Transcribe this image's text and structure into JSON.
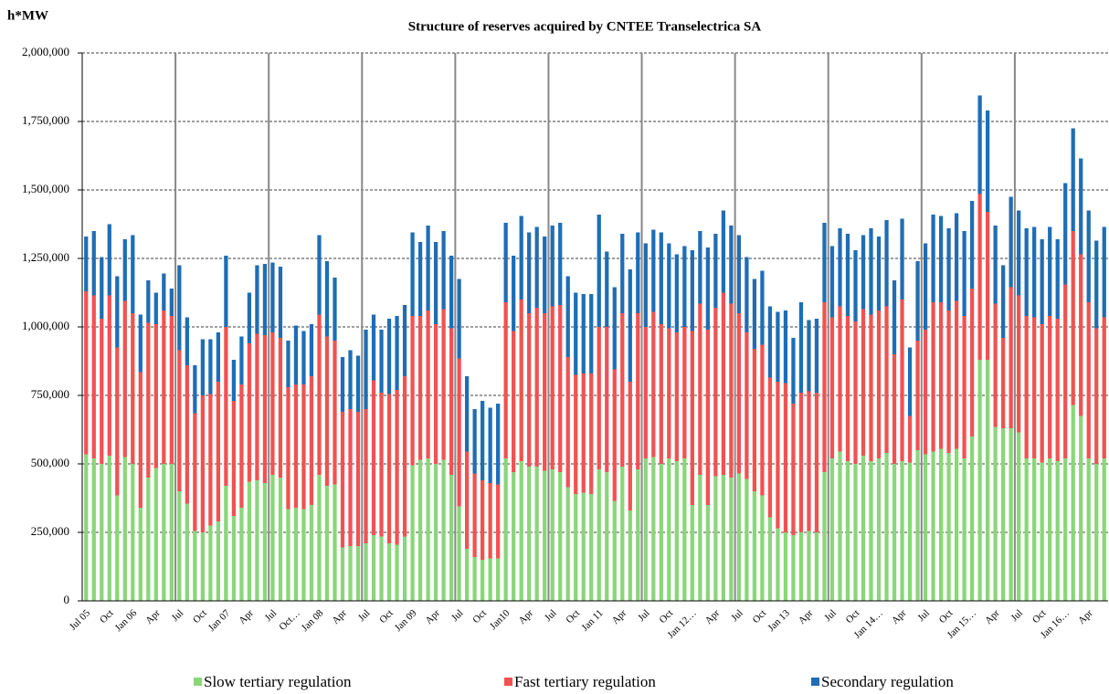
{
  "chart_data": {
    "type": "stacked_bar",
    "title": "Structure  of reserves acquired by CNTEE Transelectrica SA",
    "y_label": "h*MW",
    "categories": [
      "Jul 05",
      null,
      null,
      "Oct",
      null,
      null,
      "Jan 06",
      null,
      null,
      "Apr",
      null,
      null,
      "Jul",
      null,
      null,
      "Oct",
      null,
      null,
      "Jan 07",
      null,
      null,
      "Apr",
      null,
      null,
      "Jul",
      null,
      null,
      "Oct…",
      null,
      null,
      "Jan 08",
      null,
      null,
      "Apr",
      null,
      null,
      "Jul",
      null,
      null,
      "Oct",
      null,
      null,
      "Jan 09",
      null,
      null,
      "Apr",
      null,
      null,
      "Jul",
      null,
      null,
      "Oct",
      null,
      null,
      "Jan10",
      null,
      null,
      "Apr",
      null,
      null,
      "Jul",
      null,
      null,
      "Oct",
      null,
      null,
      "Jan 11",
      null,
      null,
      "Apr",
      null,
      null,
      "Jul",
      null,
      null,
      "Oct",
      null,
      null,
      "Jan 12…",
      null,
      null,
      "Apr",
      null,
      null,
      "Jul",
      null,
      null,
      "Oct",
      null,
      null,
      "Jan 13",
      null,
      null,
      "Apr",
      null,
      null,
      "Jul",
      null,
      null,
      "Oct",
      null,
      null,
      "Jan 14…",
      null,
      null,
      "Apr",
      null,
      null,
      "Jul",
      null,
      null,
      "Oct",
      null,
      null,
      "Jan 15…",
      null,
      null,
      "Apr",
      null,
      null,
      "Jul",
      null,
      null,
      "Oct",
      null,
      null,
      "Jan 16…",
      null,
      null,
      "Apr",
      null,
      null
    ],
    "series": [
      {
        "name": "Slow tertiary regulation",
        "color": "#8ad67a",
        "values": [
          535000,
          520000,
          500000,
          530000,
          385000,
          525000,
          500000,
          340000,
          450000,
          485000,
          500000,
          500000,
          400000,
          355000,
          255000,
          250000,
          275000,
          290000,
          420000,
          310000,
          340000,
          435000,
          440000,
          430000,
          460000,
          450000,
          335000,
          340000,
          335000,
          350000,
          460000,
          420000,
          425000,
          195000,
          200000,
          200000,
          210000,
          240000,
          235000,
          210000,
          205000,
          235000,
          495000,
          515000,
          520000,
          500000,
          515000,
          460000,
          345000,
          190000,
          160000,
          150000,
          155000,
          155000,
          520000,
          470000,
          510000,
          490000,
          490000,
          475000,
          480000,
          470000,
          415000,
          390000,
          395000,
          390000,
          480000,
          470000,
          365000,
          490000,
          330000,
          480000,
          520000,
          525000,
          500000,
          520000,
          510000,
          520000,
          350000,
          460000,
          350000,
          455000,
          460000,
          450000,
          465000,
          445000,
          400000,
          385000,
          305000,
          265000,
          250000,
          240000,
          250000,
          255000,
          250000,
          470000,
          520000,
          545000,
          510000,
          500000,
          530000,
          510000,
          520000,
          540000,
          500000,
          510000,
          505000,
          550000,
          535000,
          545000,
          555000,
          540000,
          555000,
          520000,
          600000,
          880000,
          880000,
          635000,
          630000,
          630000,
          615000,
          520000,
          520000,
          505000,
          520000,
          510000,
          520000,
          715000,
          675000,
          520000,
          500000,
          520000
        ]
      },
      {
        "name": "Fast tertiary regulation",
        "color": "#f05252",
        "values": [
          595000,
          595000,
          530000,
          585000,
          540000,
          570000,
          550000,
          495000,
          565000,
          525000,
          560000,
          540000,
          515000,
          505000,
          430000,
          500000,
          480000,
          510000,
          580000,
          420000,
          450000,
          505000,
          535000,
          540000,
          520000,
          510000,
          445000,
          450000,
          455000,
          470000,
          585000,
          545000,
          525000,
          495000,
          500000,
          490000,
          490000,
          565000,
          525000,
          545000,
          565000,
          585000,
          545000,
          525000,
          540000,
          510000,
          550000,
          535000,
          540000,
          355000,
          305000,
          290000,
          275000,
          270000,
          570000,
          515000,
          590000,
          560000,
          580000,
          575000,
          595000,
          610000,
          475000,
          435000,
          435000,
          440000,
          520000,
          530000,
          480000,
          560000,
          470000,
          570000,
          480000,
          530000,
          510000,
          475000,
          470000,
          480000,
          635000,
          625000,
          640000,
          615000,
          665000,
          635000,
          585000,
          535000,
          520000,
          550000,
          510000,
          535000,
          545000,
          480000,
          510000,
          510000,
          510000,
          620000,
          515000,
          530000,
          530000,
          520000,
          535000,
          535000,
          540000,
          535000,
          400000,
          590000,
          170000,
          400000,
          455000,
          545000,
          535000,
          520000,
          540000,
          520000,
          540000,
          605000,
          540000,
          450000,
          330000,
          515000,
          500000,
          520000,
          515000,
          505000,
          520000,
          520000,
          635000,
          635000,
          590000,
          570000,
          495000,
          515000
        ]
      },
      {
        "name": "Secondary regulation",
        "color": "#1f6db5",
        "values": [
          200000,
          235000,
          225000,
          260000,
          260000,
          225000,
          285000,
          210000,
          155000,
          115000,
          135000,
          100000,
          310000,
          175000,
          175000,
          205000,
          200000,
          180000,
          260000,
          150000,
          175000,
          185000,
          250000,
          260000,
          255000,
          260000,
          170000,
          215000,
          195000,
          190000,
          290000,
          275000,
          230000,
          200000,
          215000,
          205000,
          290000,
          240000,
          230000,
          275000,
          270000,
          260000,
          305000,
          270000,
          310000,
          300000,
          285000,
          265000,
          290000,
          275000,
          235000,
          290000,
          275000,
          295000,
          290000,
          275000,
          305000,
          295000,
          295000,
          280000,
          295000,
          300000,
          295000,
          300000,
          290000,
          290000,
          410000,
          275000,
          300000,
          290000,
          410000,
          295000,
          305000,
          300000,
          335000,
          310000,
          285000,
          295000,
          295000,
          265000,
          300000,
          270000,
          300000,
          285000,
          285000,
          275000,
          255000,
          270000,
          260000,
          255000,
          265000,
          240000,
          330000,
          260000,
          270000,
          290000,
          260000,
          285000,
          300000,
          260000,
          270000,
          315000,
          270000,
          315000,
          270000,
          295000,
          250000,
          290000,
          315000,
          320000,
          315000,
          300000,
          320000,
          310000,
          320000,
          360000,
          370000,
          285000,
          265000,
          330000,
          310000,
          320000,
          330000,
          310000,
          325000,
          290000,
          370000,
          375000,
          350000,
          335000,
          320000,
          330000
        ]
      }
    ],
    "ylim": [
      0,
      2000000
    ],
    "yticks": [
      0,
      {
        "value": 250000,
        "label": "250,000"
      },
      {
        "value": 500000,
        "label": "500,000"
      },
      {
        "value": 750000,
        "label": "750,000"
      },
      {
        "value": 1000000,
        "label": "1,000,000"
      },
      {
        "value": 1250000,
        "label": "1,250,000"
      },
      {
        "value": 1500000,
        "label": "1,500,000"
      },
      {
        "value": 1750000,
        "label": "1,750,000"
      },
      {
        "value": 2000000,
        "label": "2,000,000"
      }
    ],
    "grid": true,
    "legend": "bottom"
  }
}
